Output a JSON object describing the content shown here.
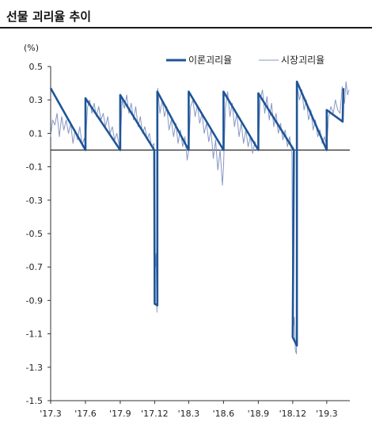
{
  "page": {
    "title": "선물 괴리율 추이"
  },
  "chart_data": {
    "type": "line",
    "title": "선물 괴리율 추이",
    "unit_label": "(%)",
    "ylim": [
      -1.5,
      0.5
    ],
    "yticks": [
      0.5,
      0.3,
      0.1,
      -0.1,
      -0.3,
      -0.5,
      -0.7,
      -0.9,
      -1.1,
      -1.3,
      -1.5
    ],
    "ytick_labels": [
      "0.5",
      "0.3",
      "0.1",
      "-0.1",
      "-0.3",
      "-0.5",
      "-0.7",
      "-0.9",
      "-1.1",
      "-1.3",
      "-1.5"
    ],
    "x_range": [
      "2017-03",
      "2019-05"
    ],
    "xticks": [
      "2017-03",
      "2017-06",
      "2017-09",
      "2017-12",
      "2018-03",
      "2018-06",
      "2018-09",
      "2018-12",
      "2019-03"
    ],
    "xtick_labels": [
      "'17.3",
      "'17.6",
      "'17.9",
      "'17.12",
      "'18.3",
      "'18.6",
      "'18.9",
      "'18.12",
      "'19.3"
    ],
    "zero_line": true,
    "legend_position": "top-right",
    "colors": {
      "theory": "#1f5597",
      "market": "#8797c4"
    },
    "series": [
      {
        "name": "이론괴리율",
        "points": [
          [
            "2017-03",
            0.37
          ],
          [
            "2017-06",
            0.0
          ],
          [
            "2017-06",
            0.31
          ],
          [
            "2017-09",
            0.0
          ],
          [
            "2017-09",
            0.33
          ],
          [
            "2017-11-30",
            0.0
          ],
          [
            "2017-12",
            -0.92
          ],
          [
            "2017-12-08",
            -0.93
          ],
          [
            "2017-12-08",
            0.35
          ],
          [
            "2018-03",
            0.0
          ],
          [
            "2018-03",
            0.35
          ],
          [
            "2018-06",
            0.0
          ],
          [
            "2018-06",
            0.35
          ],
          [
            "2018-09",
            0.0
          ],
          [
            "2018-09",
            0.34
          ],
          [
            "2018-12-04",
            0.0
          ],
          [
            "2018-12",
            -1.12
          ],
          [
            "2018-12-12",
            -1.17
          ],
          [
            "2018-12-12",
            0.41
          ],
          [
            "2019-03",
            0.0
          ],
          [
            "2019-03",
            0.24
          ],
          [
            "2019-04-12",
            0.17
          ],
          [
            "2019-04-14",
            0.37
          ]
        ]
      },
      {
        "name": "시장괴리율",
        "points": [
          [
            "2017-03",
            0.08
          ],
          [
            "2017-03-06",
            0.18
          ],
          [
            "2017-03-12",
            0.15
          ],
          [
            "2017-03-18",
            0.22
          ],
          [
            "2017-03-24",
            0.08
          ],
          [
            "2017-03-30",
            0.2
          ],
          [
            "2017-04-05",
            0.12
          ],
          [
            "2017-04-11",
            0.18
          ],
          [
            "2017-04-17",
            0.1
          ],
          [
            "2017-04-23",
            0.16
          ],
          [
            "2017-04-29",
            0.04
          ],
          [
            "2017-05-05",
            0.12
          ],
          [
            "2017-05-11",
            0.06
          ],
          [
            "2017-05-17",
            0.14
          ],
          [
            "2017-05-23",
            0.03
          ],
          [
            "2017-05-29",
            0.07
          ],
          [
            "2017-06",
            0.02
          ],
          [
            "2017-06-06",
            0.25
          ],
          [
            "2017-06-12",
            0.3
          ],
          [
            "2017-06-18",
            0.22
          ],
          [
            "2017-06-24",
            0.28
          ],
          [
            "2017-06-30",
            0.2
          ],
          [
            "2017-07-06",
            0.26
          ],
          [
            "2017-07-12",
            0.18
          ],
          [
            "2017-07-18",
            0.22
          ],
          [
            "2017-07-24",
            0.14
          ],
          [
            "2017-07-30",
            0.2
          ],
          [
            "2017-08-05",
            0.1
          ],
          [
            "2017-08-11",
            0.14
          ],
          [
            "2017-08-17",
            0.06
          ],
          [
            "2017-08-23",
            0.1
          ],
          [
            "2017-08-29",
            0.03
          ],
          [
            "2017-09",
            0.01
          ],
          [
            "2017-09-06",
            0.3
          ],
          [
            "2017-09-12",
            0.25
          ],
          [
            "2017-09-18",
            0.33
          ],
          [
            "2017-09-24",
            0.22
          ],
          [
            "2017-09-30",
            0.28
          ],
          [
            "2017-10-06",
            0.18
          ],
          [
            "2017-10-12",
            0.26
          ],
          [
            "2017-10-18",
            0.14
          ],
          [
            "2017-10-24",
            0.2
          ],
          [
            "2017-10-30",
            0.1
          ],
          [
            "2017-11-05",
            0.14
          ],
          [
            "2017-11-11",
            0.06
          ],
          [
            "2017-11-17",
            0.1
          ],
          [
            "2017-11-23",
            0.02
          ],
          [
            "2017-11-29",
            0.04
          ],
          [
            "2017-12",
            -0.66
          ],
          [
            "2017-12-03",
            -0.7
          ],
          [
            "2017-12-05",
            -0.62
          ],
          [
            "2017-12-07",
            -0.97
          ],
          [
            "2017-12-09",
            0.37
          ],
          [
            "2017-12-15",
            0.22
          ],
          [
            "2017-12-21",
            0.3
          ],
          [
            "2017-12-27",
            0.2
          ],
          [
            "2018-01-02",
            0.26
          ],
          [
            "2018-01-08",
            0.12
          ],
          [
            "2018-01-14",
            0.18
          ],
          [
            "2018-01-20",
            0.08
          ],
          [
            "2018-01-26",
            0.16
          ],
          [
            "2018-02-01",
            0.04
          ],
          [
            "2018-02-07",
            0.12
          ],
          [
            "2018-02-13",
            0.02
          ],
          [
            "2018-02-19",
            0.08
          ],
          [
            "2018-02-25",
            -0.06
          ],
          [
            "2018-03",
            0.0
          ],
          [
            "2018-03-06",
            0.26
          ],
          [
            "2018-03-12",
            0.3
          ],
          [
            "2018-03-18",
            0.2
          ],
          [
            "2018-03-24",
            0.27
          ],
          [
            "2018-03-30",
            0.16
          ],
          [
            "2018-04-05",
            0.22
          ],
          [
            "2018-04-11",
            0.1
          ],
          [
            "2018-04-17",
            0.16
          ],
          [
            "2018-04-23",
            0.05
          ],
          [
            "2018-04-29",
            0.12
          ],
          [
            "2018-05-05",
            -0.05
          ],
          [
            "2018-05-11",
            0.06
          ],
          [
            "2018-05-17",
            -0.12
          ],
          [
            "2018-05-23",
            0.0
          ],
          [
            "2018-05-29",
            -0.21
          ],
          [
            "2018-06",
            -0.1
          ],
          [
            "2018-06-06",
            0.25
          ],
          [
            "2018-06-12",
            0.35
          ],
          [
            "2018-06-18",
            0.2
          ],
          [
            "2018-06-24",
            0.28
          ],
          [
            "2018-06-30",
            0.14
          ],
          [
            "2018-07-06",
            0.22
          ],
          [
            "2018-07-12",
            0.08
          ],
          [
            "2018-07-18",
            0.16
          ],
          [
            "2018-07-24",
            0.04
          ],
          [
            "2018-07-30",
            0.12
          ],
          [
            "2018-08-05",
            0.02
          ],
          [
            "2018-08-11",
            0.08
          ],
          [
            "2018-08-17",
            -0.02
          ],
          [
            "2018-08-23",
            0.05
          ],
          [
            "2018-08-29",
            0.0
          ],
          [
            "2018-09",
            0.02
          ],
          [
            "2018-09-06",
            0.3
          ],
          [
            "2018-09-12",
            0.36
          ],
          [
            "2018-09-18",
            0.22
          ],
          [
            "2018-09-24",
            0.32
          ],
          [
            "2018-09-30",
            0.18
          ],
          [
            "2018-10-06",
            0.28
          ],
          [
            "2018-10-12",
            0.14
          ],
          [
            "2018-10-18",
            0.22
          ],
          [
            "2018-10-24",
            0.1
          ],
          [
            "2018-10-30",
            0.16
          ],
          [
            "2018-11-05",
            0.06
          ],
          [
            "2018-11-11",
            0.12
          ],
          [
            "2018-11-17",
            0.02
          ],
          [
            "2018-11-23",
            0.08
          ],
          [
            "2018-11-29",
            -0.02
          ],
          [
            "2018-12",
            -0.98
          ],
          [
            "2018-12-03",
            -1.05
          ],
          [
            "2018-12-05",
            -1.0
          ],
          [
            "2018-12-08",
            -1.2
          ],
          [
            "2018-12-11",
            -1.22
          ],
          [
            "2018-12-13",
            0.38
          ],
          [
            "2018-12-19",
            0.3
          ],
          [
            "2018-12-25",
            0.36
          ],
          [
            "2018-12-31",
            0.24
          ],
          [
            "2019-01-06",
            0.3
          ],
          [
            "2019-01-12",
            0.18
          ],
          [
            "2019-01-18",
            0.24
          ],
          [
            "2019-01-24",
            0.12
          ],
          [
            "2019-01-30",
            0.18
          ],
          [
            "2019-02-05",
            0.08
          ],
          [
            "2019-02-11",
            0.12
          ],
          [
            "2019-02-17",
            0.04
          ],
          [
            "2019-02-23",
            0.08
          ],
          [
            "2019-03",
            0.02
          ],
          [
            "2019-03-06",
            0.2
          ],
          [
            "2019-03-12",
            0.26
          ],
          [
            "2019-03-18",
            0.22
          ],
          [
            "2019-03-24",
            0.3
          ],
          [
            "2019-03-30",
            0.24
          ],
          [
            "2019-04-05",
            0.22
          ],
          [
            "2019-04-11",
            0.38
          ],
          [
            "2019-04-17",
            0.28
          ],
          [
            "2019-04-21",
            0.41
          ],
          [
            "2019-04-25",
            0.33
          ],
          [
            "2019-04-29",
            0.36
          ]
        ]
      }
    ]
  }
}
